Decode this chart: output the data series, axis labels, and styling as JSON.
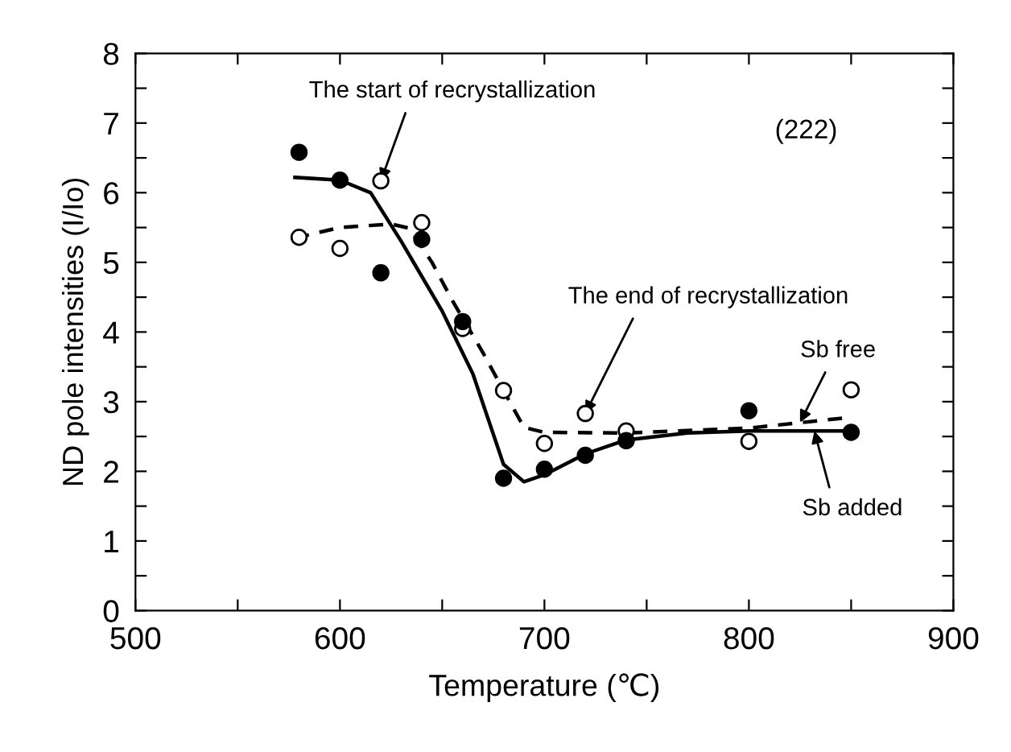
{
  "chart_data": {
    "type": "scatter",
    "xlabel": "Temperature (℃)",
    "ylabel": "ND pole intensities (I/Io)",
    "xlim": [
      500,
      900
    ],
    "ylim": [
      0,
      8
    ],
    "xticks": [
      500,
      {
        "value": 550,
        "label": null
      },
      600,
      {
        "value": 650,
        "label": null
      },
      700,
      {
        "value": 750,
        "label": null
      },
      800,
      {
        "value": 850,
        "label": null
      },
      900
    ],
    "yticks": [
      0,
      {
        "value": 0.5,
        "label": null
      },
      1,
      {
        "value": 1.5,
        "label": null
      },
      2,
      {
        "value": 2.5,
        "label": null
      },
      3,
      {
        "value": 3.5,
        "label": null
      },
      4,
      {
        "value": 4.5,
        "label": null
      },
      5,
      {
        "value": 5.5,
        "label": null
      },
      6,
      {
        "value": 6.5,
        "label": null
      },
      7,
      {
        "value": 7.5,
        "label": null
      },
      8
    ],
    "grid": false,
    "legend": false,
    "series": [
      {
        "marker": "circle",
        "color": "#000000",
        "x": [
          580,
          600,
          620,
          640,
          660,
          680,
          700,
          720,
          740,
          800,
          850
        ],
        "values": [
          6.58,
          6.18,
          4.85,
          5.33,
          4.15,
          1.9,
          2.03,
          2.23,
          2.44,
          2.87,
          2.56
        ]
      },
      {
        "marker": "circle",
        "color": "#ffffff",
        "x": [
          580,
          600,
          620,
          640,
          660,
          680,
          700,
          720,
          740,
          800,
          850
        ],
        "values": [
          5.36,
          5.2,
          6.17,
          5.57,
          4.05,
          3.16,
          2.4,
          2.83,
          2.58,
          2.43,
          3.17
        ]
      },
      {
        "type": "line",
        "line_style": "solid",
        "marker": "none",
        "color": "#000000",
        "x": [
          578,
          600,
          615,
          630,
          650,
          665,
          680,
          690,
          700,
          720,
          740,
          770,
          800,
          850
        ],
        "values": [
          6.22,
          6.18,
          6.0,
          5.3,
          4.3,
          3.4,
          2.1,
          1.85,
          1.95,
          2.25,
          2.45,
          2.55,
          2.58,
          2.58
        ]
      },
      {
        "type": "line",
        "line_style": "dashed",
        "marker": "none",
        "color": "#000000",
        "x": [
          578,
          600,
          625,
          634,
          645,
          655,
          670,
          680,
          690,
          700,
          740,
          800,
          848
        ],
        "values": [
          5.35,
          5.5,
          5.55,
          5.49,
          5.0,
          4.45,
          3.7,
          3.16,
          2.63,
          2.56,
          2.55,
          2.62,
          2.77
        ]
      }
    ],
    "annotations": [
      {
        "text": "The start of recrystallization",
        "x": 620,
        "y": 6.17
      },
      {
        "text": "The end of recrystallization",
        "x": 720,
        "y": 2.83
      },
      {
        "text": "Sb free",
        "x": 825,
        "y": 2.7
      },
      {
        "text": "Sb added",
        "x": 832,
        "y": 2.58
      },
      "(222)"
    ]
  }
}
